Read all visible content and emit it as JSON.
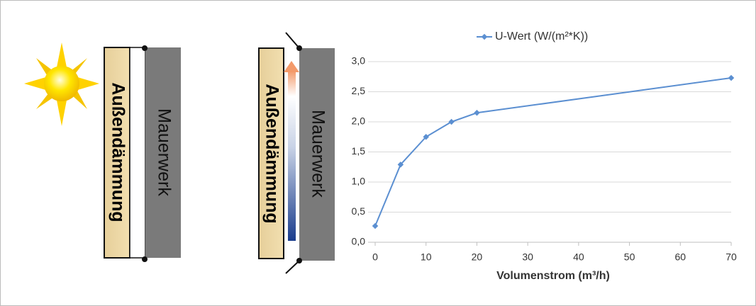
{
  "panels": [
    {
      "insulation": "Außendämmung",
      "masonry": "Mauerwerk"
    },
    {
      "insulation": "Außendämmung",
      "masonry": "Mauerwerk"
    }
  ],
  "chart_data": {
    "type": "line",
    "x": [
      0,
      5,
      10,
      15,
      20,
      70
    ],
    "series": [
      {
        "name": "U-Wert (W/(m²*K))",
        "color": "#5b8fd1",
        "values": [
          0.27,
          1.29,
          1.75,
          2.0,
          2.15,
          2.73
        ]
      }
    ],
    "xlabel": "Volumenstrom (m³/h)",
    "xlim": [
      0,
      70
    ],
    "xticks": [
      0,
      10,
      20,
      30,
      40,
      50,
      60,
      70
    ],
    "ylim": [
      0,
      3
    ],
    "yticks": [
      {
        "value": 0,
        "label": "0,0"
      },
      {
        "value": 0.5,
        "label": "0,5"
      },
      {
        "value": 1,
        "label": "1,0"
      },
      {
        "value": 1.5,
        "label": "1,5"
      },
      {
        "value": 2,
        "label": "2,0"
      },
      {
        "value": 2.5,
        "label": "2,5"
      },
      {
        "value": 3,
        "label": "3,0"
      }
    ],
    "grid": true,
    "legend": "top"
  }
}
